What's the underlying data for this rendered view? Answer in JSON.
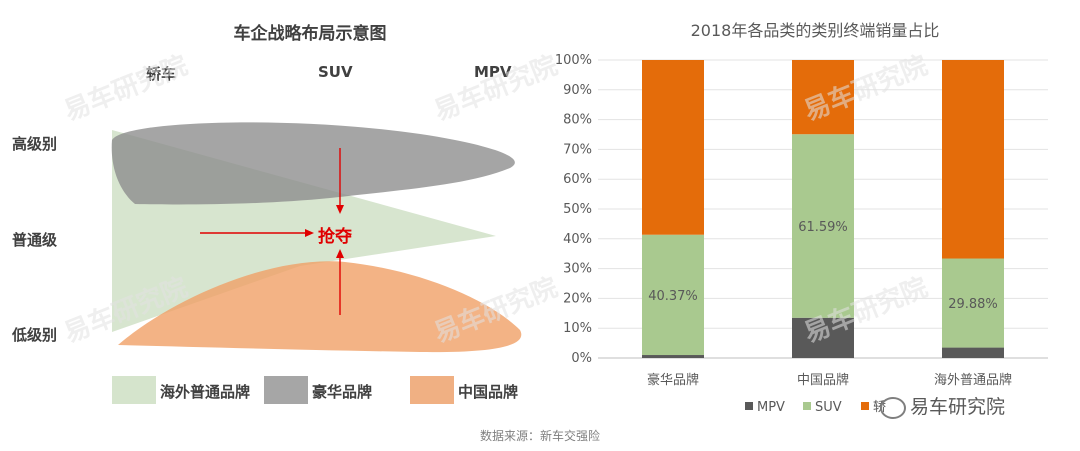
{
  "left": {
    "title": "车企战略布局示意图",
    "columns": [
      "轿车",
      "SUV",
      "MPV"
    ],
    "rows": [
      "高级别",
      "普通级",
      "低级别"
    ],
    "callout": "抢夺",
    "legend": [
      {
        "label": "海外普通品牌",
        "color": "#d5e4cc"
      },
      {
        "label": "豪华品牌",
        "color": "#a6a6a6"
      },
      {
        "label": "中国品牌",
        "color": "#f0b083"
      }
    ],
    "callout_color": "#e00000"
  },
  "watermark": "易车研究院",
  "chart_data": {
    "type": "bar",
    "stacked": true,
    "title": "2018年各品类的类别终端销量占比",
    "categories": [
      "豪华品牌",
      "中国品牌",
      "海外普通品牌"
    ],
    "series": [
      {
        "name": "MPV",
        "color": "#595959",
        "values": [
          1.0,
          13.5,
          3.5
        ]
      },
      {
        "name": "SUV",
        "color": "#a9c98f",
        "values": [
          40.37,
          61.59,
          29.88
        ]
      },
      {
        "name": "轿车",
        "color": "#e46c0a",
        "values": [
          58.63,
          24.91,
          66.62
        ]
      }
    ],
    "data_labels": [
      "40.37%",
      "61.59%",
      "29.88%"
    ],
    "ylim": [
      0,
      100
    ],
    "y_ticks": [
      "0%",
      "10%",
      "20%",
      "30%",
      "40%",
      "50%",
      "60%",
      "70%",
      "80%",
      "90%",
      "100%"
    ],
    "legend_position": "bottom",
    "legend_labels": [
      "MPV",
      "SUV",
      "轿"
    ],
    "grid": true
  },
  "footer": {
    "source": "数据来源：新车交强险",
    "wechat_label": "易车研究院"
  }
}
